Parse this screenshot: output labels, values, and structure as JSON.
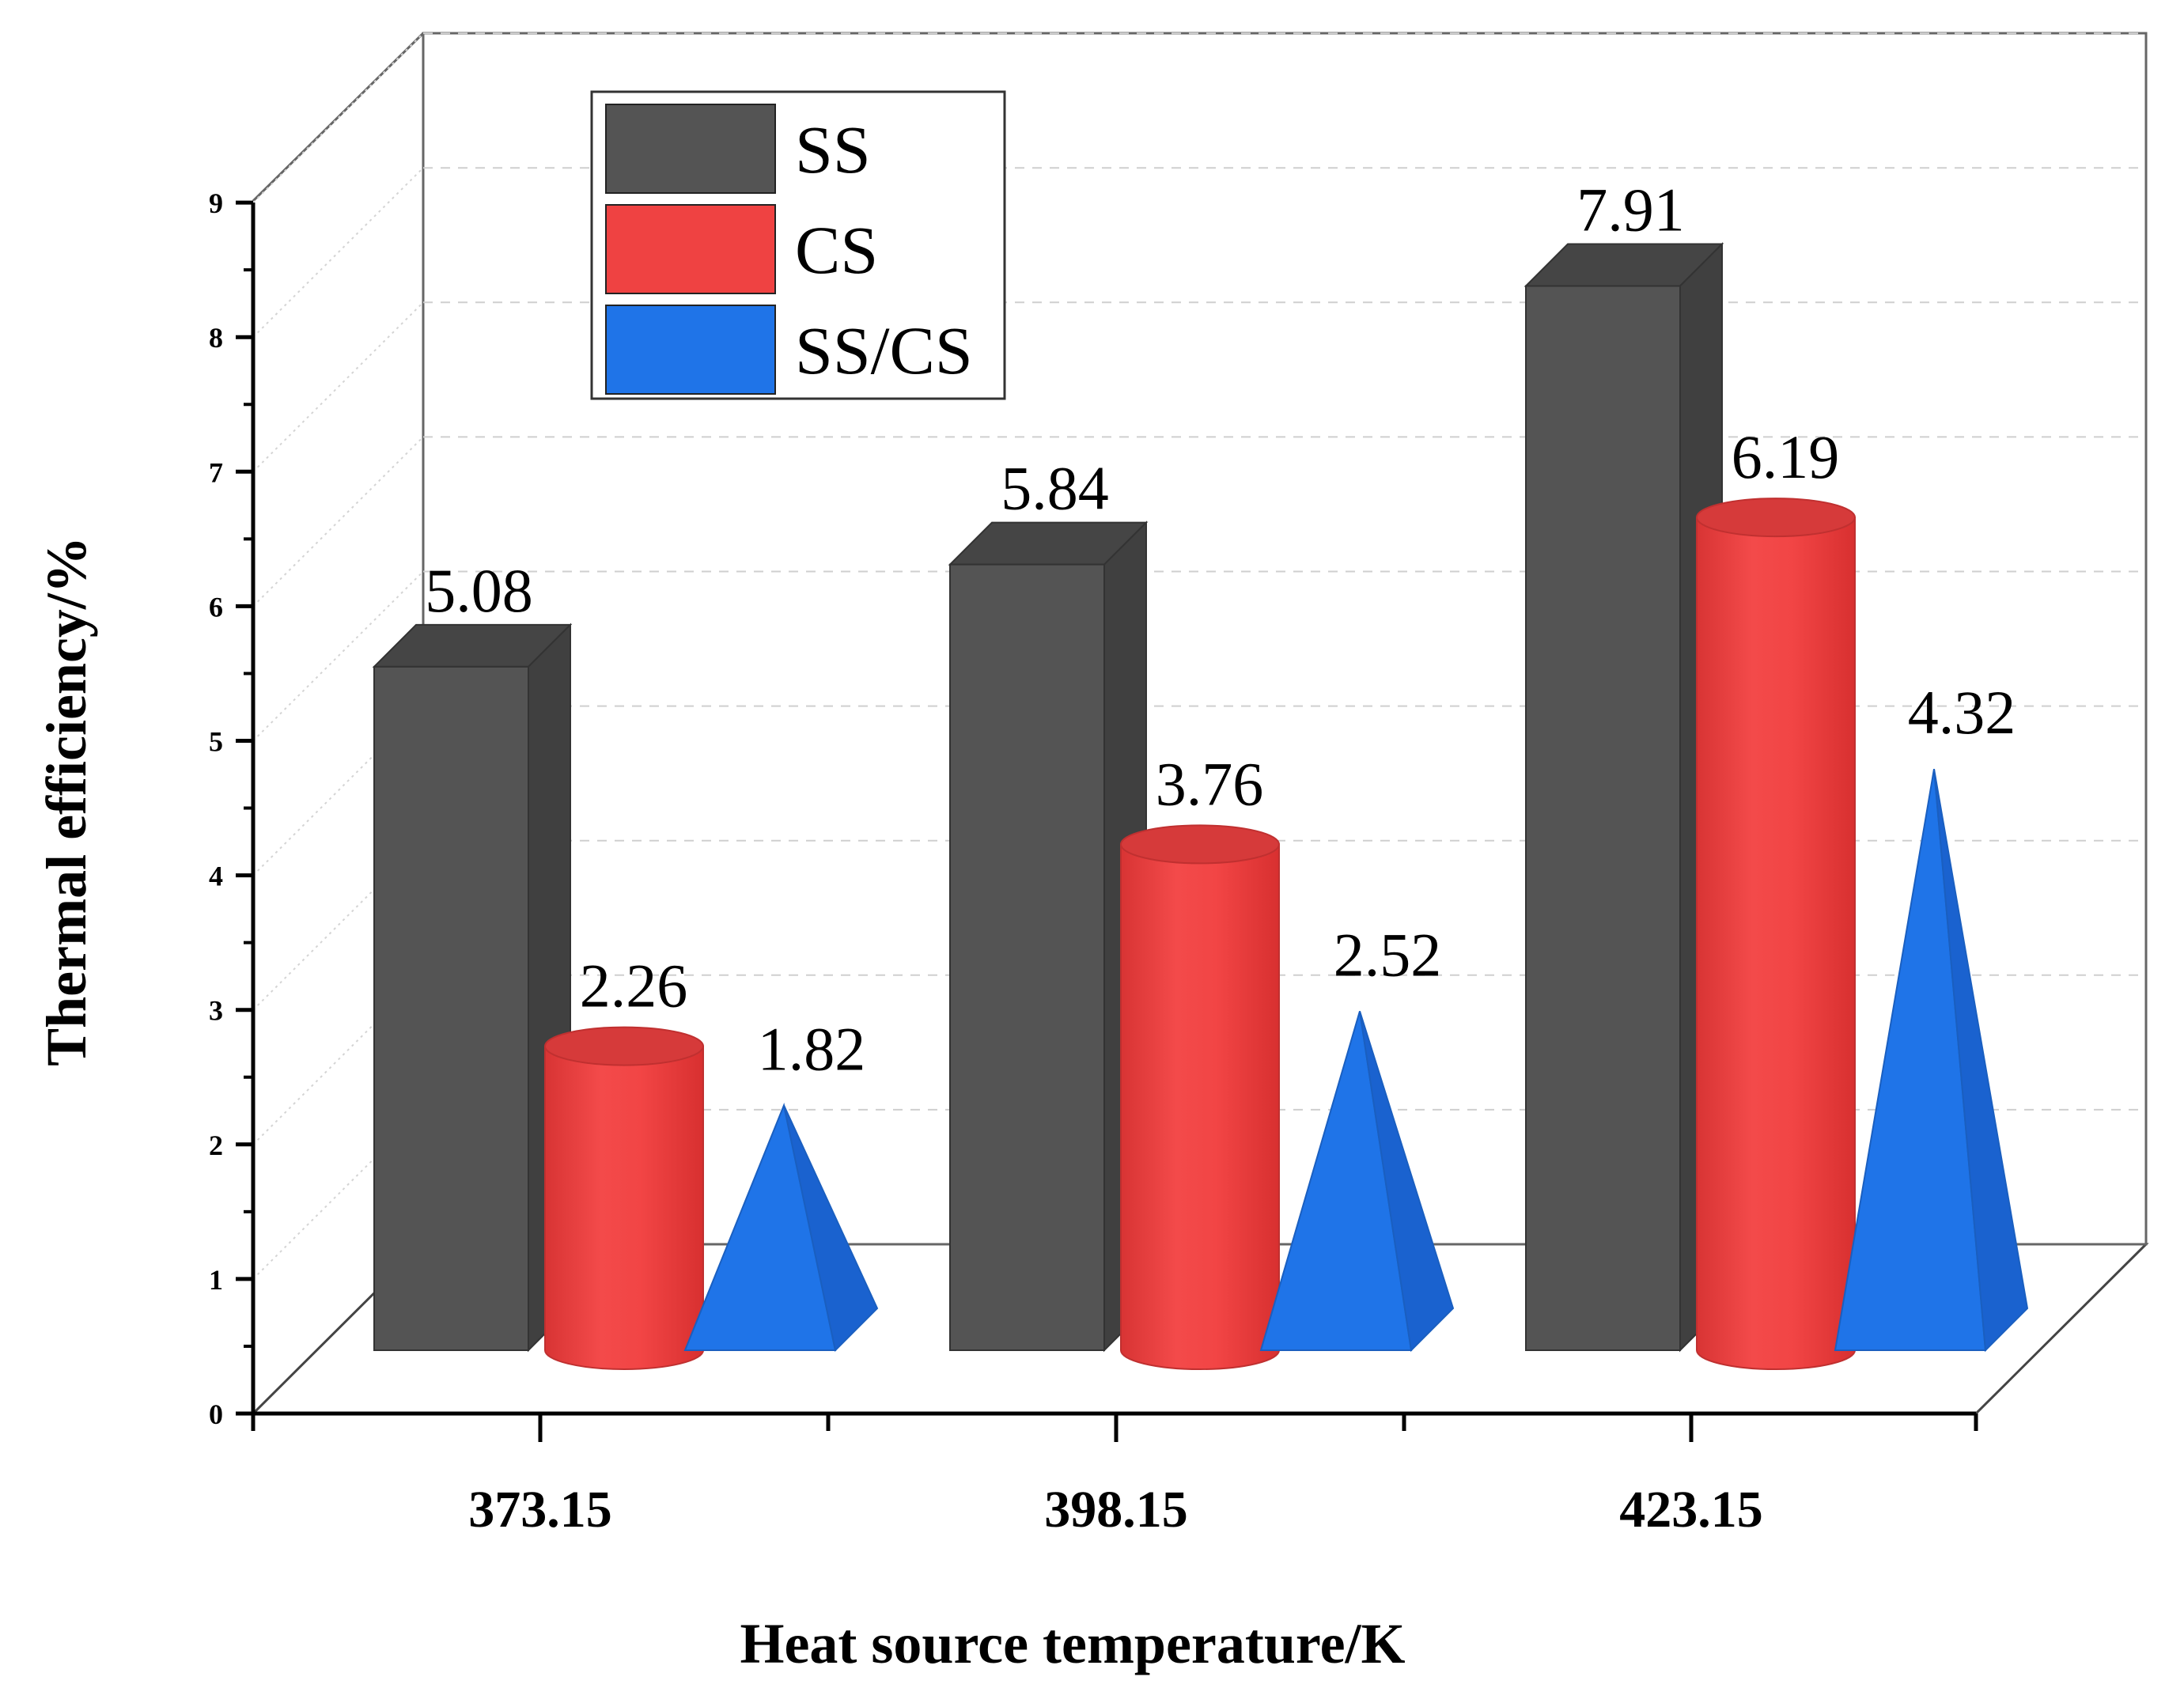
{
  "chart_data": {
    "type": "bar",
    "style": "3d",
    "categories": [
      "373.15",
      "398.15",
      "423.15"
    ],
    "series": [
      {
        "name": "SS",
        "shape": "box",
        "color": "#545454",
        "values": [
          5.08,
          5.84,
          7.91
        ]
      },
      {
        "name": "CS",
        "shape": "cylinder",
        "color": "#ef4242",
        "values": [
          2.26,
          3.76,
          6.19
        ]
      },
      {
        "name": "SS/CS",
        "shape": "pyramid",
        "color": "#1f74e8",
        "values": [
          1.82,
          2.52,
          4.32
        ]
      }
    ],
    "data_labels": [
      [
        "5.08",
        "5.84",
        "7.91"
      ],
      [
        "2.26",
        "3.76",
        "6.19"
      ],
      [
        "1.82",
        "2.52",
        "4.32"
      ]
    ],
    "yticks": [
      "0",
      "1",
      "2",
      "3",
      "4",
      "5",
      "6",
      "7",
      "8",
      "9"
    ],
    "ylim": [
      0,
      9
    ],
    "xlabel": "Heat source temperature/K",
    "ylabel": "Thermal efficiency/%",
    "legend": {
      "position": "top-left"
    },
    "grid": true
  }
}
